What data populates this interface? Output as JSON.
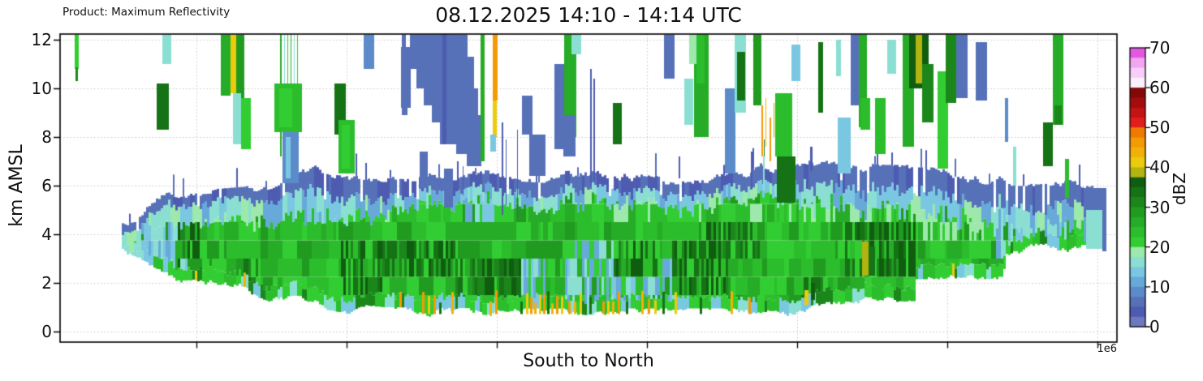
{
  "header": {
    "product_label": "Product: Maximum Reflectivity",
    "title": "08.12.2025 14:10 - 14:14 UTC"
  },
  "axes": {
    "ylabel": "km AMSL",
    "xlabel": "South to North",
    "offset_label": "1e6",
    "y_ticks": [
      "0",
      "2",
      "4",
      "6",
      "8",
      "10",
      "12"
    ]
  },
  "colorbar": {
    "label": "dBZ",
    "ticks": [
      "70",
      "60",
      "50",
      "40",
      "30",
      "20",
      "10",
      "0"
    ],
    "min": 0,
    "max": 70,
    "step": 2.5,
    "colors": [
      "#6d79be",
      "#4d5cb0",
      "#5671b8",
      "#5b8bc9",
      "#67a9d9",
      "#7ac7e2",
      "#8bdfd2",
      "#9ce9ab",
      "#32cd32",
      "#2bbd2b",
      "#26ac26",
      "#209b20",
      "#1b871b",
      "#157215",
      "#0f5e0f",
      "#b2b410",
      "#eccb0e",
      "#f2b109",
      "#f49a05",
      "#ef7a02",
      "#e11d1d",
      "#c31313",
      "#a30d0d",
      "#850808",
      "#fcf0fc",
      "#f8cef8",
      "#f2a6f2",
      "#e358e3"
    ]
  },
  "chart_data": {
    "type": "heatmap",
    "title": "08.12.2025 14:10 - 14:14 UTC",
    "xlabel": "South to North",
    "ylabel": "km AMSL",
    "units": "dBZ",
    "y_range": [
      0,
      12
    ],
    "x_offset_scale": "1e6",
    "grid": "dotted",
    "seed": 7,
    "x_range": [
      150,
      1362
    ],
    "envelope": [
      [
        150,
        4.6,
        3.5
      ],
      [
        192,
        5.3,
        2.6
      ],
      [
        215,
        5.4,
        2.3
      ],
      [
        300,
        5.6,
        1.9
      ],
      [
        330,
        5.9,
        1.25
      ],
      [
        390,
        6.5,
        1.2
      ],
      [
        470,
        6.5,
        0.75
      ],
      [
        600,
        6.6,
        0.7
      ],
      [
        700,
        6.4,
        0.7
      ],
      [
        830,
        6.4,
        0.7
      ],
      [
        900,
        6.5,
        0.7
      ],
      [
        955,
        6.6,
        0.6
      ],
      [
        1010,
        7.0,
        0.95
      ],
      [
        1050,
        6.6,
        1.0
      ],
      [
        1090,
        6.5,
        1.45
      ],
      [
        1125,
        6.5,
        1.5
      ],
      [
        1128,
        6.4,
        2.4
      ],
      [
        1235,
        6.4,
        2.4
      ],
      [
        1238,
        6.35,
        3.4
      ],
      [
        1300,
        6.3,
        3.35
      ],
      [
        1342,
        6.2,
        3.3
      ],
      [
        1360,
        5.9,
        3.4
      ]
    ],
    "slate_thickness": [
      [
        150,
        0.35
      ],
      [
        330,
        0.5
      ],
      [
        390,
        0.95
      ],
      [
        520,
        0.6
      ],
      [
        930,
        0.55
      ],
      [
        1000,
        0.95
      ],
      [
        1360,
        0.9
      ]
    ],
    "lightblue_thickness": [
      [
        150,
        0.6
      ],
      [
        390,
        0.9
      ],
      [
        520,
        0.5
      ],
      [
        930,
        0.5
      ],
      [
        1000,
        0.75
      ],
      [
        1360,
        0.8
      ]
    ],
    "zones": [
      {
        "r": [
          218,
          252,
          2.8,
          4.3
        ],
        "dbz": [
          31,
          33,
          36
        ],
        "p": 0.6
      },
      {
        "r": [
          296,
          318,
          1.9,
          3.2
        ],
        "dbz": [
          31,
          33,
          36
        ],
        "p": 0.6
      },
      {
        "r": [
          420,
          470,
          1.8,
          3.6
        ],
        "dbz": [
          31,
          33,
          36
        ],
        "p": 0.6
      },
      {
        "r": [
          470,
          560,
          2.0,
          4.0
        ],
        "dbz": [
          31,
          33,
          36
        ],
        "p": 0.6
      },
      {
        "r": [
          560,
          640,
          1.4,
          2.9
        ],
        "dbz": [
          31,
          33,
          36
        ],
        "p": 0.55
      },
      {
        "r": [
          755,
          815,
          2.4,
          3.9
        ],
        "dbz": [
          31,
          33,
          36
        ],
        "p": 0.55
      },
      {
        "r": [
          828,
          900,
          1.8,
          3.4
        ],
        "dbz": [
          31,
          33,
          36
        ],
        "p": 0.55
      },
      {
        "r": [
          868,
          940,
          2.8,
          4.4
        ],
        "dbz": [
          31,
          33,
          36
        ],
        "p": 0.55
      },
      {
        "r": [
          978,
          1012,
          1.4,
          2.6
        ],
        "dbz": [
          31,
          33,
          36
        ],
        "p": 0.6
      },
      {
        "r": [
          1040,
          1128,
          2.3,
          4.2
        ],
        "dbz": [
          31,
          33,
          36
        ],
        "p": 0.65
      },
      {
        "r": [
          150,
          230,
          2.2,
          5.4
        ],
        "dbz": [
          11,
          13,
          16
        ],
        "p": 0.85
      },
      {
        "r": [
          376,
          424,
          4.2,
          5.4
        ],
        "dbz": [
          11,
          13,
          16
        ],
        "p": 0.6
      },
      {
        "r": [
          570,
          608,
          4.3,
          5.6
        ],
        "dbz": [
          11,
          13,
          16
        ],
        "p": 0.55
      },
      {
        "r": [
          640,
          670,
          1.4,
          2.7
        ],
        "dbz": [
          11,
          13,
          16
        ],
        "p": 0.7
      },
      {
        "r": [
          694,
          834,
          1.3,
          2.7
        ],
        "dbz": [
          11,
          13,
          16
        ],
        "p": 0.6
      },
      {
        "r": [
          700,
          764,
          2.6,
          3.7
        ],
        "dbz": [
          11,
          13,
          16
        ],
        "p": 0.55
      },
      {
        "r": [
          1226,
          1312,
          3.3,
          5.0
        ],
        "dbz": [
          11,
          13,
          16
        ],
        "p": 0.75
      },
      {
        "r": [
          700,
          762,
          1.7,
          2.4
        ],
        "dbz": [
          3,
          6,
          7
        ],
        "p": 0.5
      },
      {
        "r": [
          838,
          876,
          1.7,
          2.6
        ],
        "dbz": [
          3,
          6,
          7
        ],
        "p": 0.5
      },
      {
        "r": [
          206,
          220,
          2.3,
          5.4
        ],
        "dbz": [
          3,
          6,
          7
        ],
        "p": 0.5
      },
      {
        "r": [
          940,
          1290,
          4.2,
          4.9
        ],
        "dbz": [
          19,
          21
        ],
        "p": 0.5
      },
      {
        "r": [
          1128,
          1235,
          4.0,
          4.9
        ],
        "dbz": [
          19,
          21
        ],
        "p": 0.5
      }
    ],
    "cells": [
      [
        92,
        97,
        10.8,
        12.3,
        21
      ],
      [
        93,
        96,
        10.3,
        10.85,
        31
      ],
      [
        200,
        211,
        11.0,
        12.3,
        16
      ],
      [
        193,
        208,
        8.3,
        10.2,
        33
      ],
      [
        272,
        284,
        9.7,
        12.3,
        26
      ],
      [
        284,
        291,
        9.8,
        12.3,
        41
      ],
      [
        291,
        301,
        9.6,
        12.3,
        29
      ],
      [
        287,
        297,
        7.7,
        9.8,
        16
      ],
      [
        297,
        309,
        7.5,
        9.6,
        21
      ],
      [
        345,
        347,
        7.2,
        12.3,
        26
      ],
      [
        350,
        351,
        8.0,
        12.3,
        16
      ],
      [
        354,
        355,
        7.5,
        12.3,
        21
      ],
      [
        358,
        359,
        9.0,
        12.3,
        26
      ],
      [
        362,
        363,
        8.3,
        12.3,
        16
      ],
      [
        366,
        367,
        9.5,
        12.3,
        21
      ],
      [
        338,
        372,
        8.2,
        10.2,
        24
      ],
      [
        344,
        360,
        8.4,
        10.0,
        21
      ],
      [
        348,
        368,
        6.1,
        8.2,
        9
      ],
      [
        352,
        358,
        6.3,
        8.0,
        13
      ],
      [
        412,
        426,
        8.1,
        10.2,
        33
      ],
      [
        417,
        437,
        6.5,
        8.7,
        23
      ],
      [
        421,
        431,
        6.7,
        8.5,
        21
      ],
      [
        448,
        461,
        10.8,
        12.3,
        9
      ],
      [
        494,
        506,
        9.2,
        11.7,
        6
      ],
      [
        495,
        500,
        11.2,
        12.3,
        6
      ],
      [
        495,
        502,
        8.9,
        10.2,
        6
      ],
      [
        505,
        522,
        10.8,
        12.3,
        6
      ],
      [
        513,
        532,
        10.0,
        12.3,
        6
      ],
      [
        522,
        544,
        9.3,
        12.3,
        6
      ],
      [
        532,
        556,
        8.6,
        12.3,
        6
      ],
      [
        542,
        576,
        7.7,
        12.3,
        6
      ],
      [
        554,
        584,
        8.1,
        11.3,
        6
      ],
      [
        562,
        589,
        7.3,
        10.0,
        6
      ],
      [
        575,
        593,
        6.8,
        8.9,
        6
      ],
      [
        545,
        550,
        7.7,
        12.3,
        4
      ],
      [
        517,
        527,
        5.9,
        7.4,
        6
      ],
      [
        547,
        558,
        5.1,
        6.7,
        6
      ],
      [
        592,
        597,
        7.0,
        12.3,
        26
      ],
      [
        607,
        613,
        9.5,
        12.3,
        46
      ],
      [
        607,
        612,
        8.0,
        9.5,
        42
      ],
      [
        604,
        611,
        7.4,
        8.1,
        13
      ],
      [
        618,
        620,
        4.8,
        8.6,
        4
      ],
      [
        623,
        624,
        5.2,
        7.9,
        4
      ],
      [
        637,
        638,
        4.6,
        8.3,
        4
      ],
      [
        643,
        656,
        8.1,
        9.7,
        6
      ],
      [
        652,
        672,
        6.4,
        8.1,
        6
      ],
      [
        683,
        696,
        7.5,
        11.0,
        6
      ],
      [
        695,
        710,
        8.0,
        12.3,
        26
      ],
      [
        704,
        716,
        11.4,
        12.3,
        16
      ],
      [
        694,
        709,
        7.2,
        8.9,
        6
      ],
      [
        727,
        729,
        6.0,
        10.8,
        4
      ],
      [
        731,
        733,
        6.2,
        10.4,
        4
      ],
      [
        755,
        766,
        7.7,
        9.4,
        33
      ],
      [
        818,
        831,
        10.4,
        12.3,
        6
      ],
      [
        843,
        854,
        8.5,
        10.4,
        16
      ],
      [
        855,
        873,
        8.0,
        12.3,
        26
      ],
      [
        858,
        868,
        10.2,
        12.3,
        23
      ],
      [
        849,
        858,
        11.0,
        12.3,
        18
      ],
      [
        893,
        906,
        6.5,
        10.0,
        9
      ],
      [
        905,
        919,
        9.0,
        12.3,
        16
      ],
      [
        908,
        918,
        9.5,
        11.5,
        33
      ],
      [
        928,
        938,
        9.3,
        12.3,
        28
      ],
      [
        938,
        940,
        7.2,
        9.3,
        46
      ],
      [
        943,
        944,
        7.6,
        9.6,
        44
      ],
      [
        948,
        950,
        7.0,
        8.8,
        46
      ],
      [
        953,
        954,
        8.0,
        9.4,
        38
      ],
      [
        941,
        942,
        6.8,
        7.9,
        33
      ],
      [
        955,
        976,
        7.2,
        9.8,
        23
      ],
      [
        957,
        980,
        5.3,
        7.2,
        33
      ],
      [
        975,
        986,
        10.3,
        11.8,
        13
      ],
      [
        1008,
        1014,
        9.0,
        11.9,
        33
      ],
      [
        1030,
        1036,
        10.5,
        12.0,
        16
      ],
      [
        1048,
        1062,
        9.3,
        12.3,
        6
      ],
      [
        1058,
        1068,
        8.4,
        12.3,
        26
      ],
      [
        1060,
        1072,
        8.3,
        9.6,
        23
      ],
      [
        1032,
        1048,
        6.5,
        8.8,
        13
      ],
      [
        1078,
        1091,
        7.3,
        9.6,
        24
      ],
      [
        1093,
        1104,
        10.6,
        12.0,
        16
      ],
      [
        1112,
        1126,
        7.6,
        12.3,
        26
      ],
      [
        1120,
        1144,
        10.0,
        12.3,
        36
      ],
      [
        1128,
        1136,
        10.2,
        12.3,
        38
      ],
      [
        1136,
        1150,
        8.6,
        11.0,
        31
      ],
      [
        1155,
        1168,
        6.7,
        10.7,
        22
      ],
      [
        1165,
        1178,
        9.4,
        12.3,
        31
      ],
      [
        1178,
        1192,
        9.6,
        12.3,
        6
      ],
      [
        1202,
        1216,
        9.5,
        11.9,
        6
      ],
      [
        1238,
        1242,
        7.8,
        9.6,
        9
      ],
      [
        1248,
        1252,
        6.0,
        7.6,
        16
      ],
      [
        1285,
        1297,
        6.8,
        8.6,
        33
      ],
      [
        1297,
        1310,
        8.5,
        12.3,
        26
      ],
      [
        1299,
        1308,
        8.5,
        9.3,
        31
      ],
      [
        1312,
        1317,
        5.5,
        7.1,
        23
      ],
      [
        1340,
        1361,
        5.0,
        5.9,
        6
      ],
      [
        1338,
        1358,
        3.4,
        5.0,
        16
      ],
      [
        1358,
        1363,
        3.3,
        5.9,
        6
      ],
      [
        1062,
        1070,
        2.3,
        3.7,
        38
      ],
      [
        1070,
        1078,
        2.3,
        3.5,
        33
      ],
      [
        991,
        996,
        1.1,
        1.7,
        41
      ],
      [
        999,
        1004,
        1.3,
        2.0,
        36
      ],
      [
        563,
        565,
        5.8,
        7.0,
        4
      ],
      [
        570,
        571,
        5.6,
        6.8,
        4
      ],
      [
        836,
        838,
        6.3,
        7.2,
        4
      ],
      [
        998,
        1001,
        6.6,
        7.6,
        4
      ],
      [
        940,
        942,
        5.8,
        7.2,
        16
      ],
      [
        925,
        927,
        5.9,
        7.4,
        4
      ]
    ],
    "bottom_spikes": [
      [
        520,
        45
      ],
      [
        527,
        42
      ],
      [
        534,
        47
      ],
      [
        541,
        33
      ],
      [
        556,
        44
      ],
      [
        610,
        46
      ],
      [
        641,
        33
      ],
      [
        648,
        41
      ],
      [
        653,
        46
      ],
      [
        658,
        44
      ],
      [
        664,
        42
      ],
      [
        669,
        46
      ],
      [
        674,
        33
      ],
      [
        679,
        44
      ],
      [
        685,
        46
      ],
      [
        691,
        41
      ],
      [
        700,
        46
      ],
      [
        707,
        44
      ],
      [
        714,
        42
      ],
      [
        726,
        33
      ],
      [
        742,
        46
      ],
      [
        748,
        41
      ],
      [
        754,
        44
      ],
      [
        761,
        46
      ],
      [
        771,
        33
      ],
      [
        790,
        44
      ],
      [
        798,
        46
      ],
      [
        806,
        42
      ],
      [
        816,
        33
      ],
      [
        831,
        41
      ],
      [
        862,
        33
      ],
      [
        900,
        44
      ],
      [
        922,
        46
      ]
    ]
  }
}
